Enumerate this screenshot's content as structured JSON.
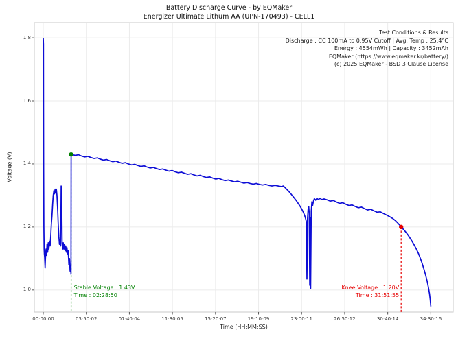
{
  "chart_data": {
    "type": "line",
    "title": "Battery Discharge Curve - by EQMaker",
    "subtitle": "Energizer Ultimate Lithum AA (UPN-170493) - CELL1",
    "xlabel": "Time (HH:MM:SS)",
    "ylabel": "Voltage (V)",
    "grid": true,
    "legend_position": "none",
    "info_box": {
      "lines": [
        "Test Conditions & Results",
        "Discharge : CC 100mA to 0.95V Cutoff | Avg. Temp : 25.4°C",
        "Energy : 4554mWh | Capacity : 3452mAh",
        "EQMaker (https://www.eqmaker.kr/battery/)",
        "(c) 2025 EQMaker - BSD 3 Clause License"
      ]
    },
    "x_ticks": [
      {
        "label": "00:00:00",
        "t": 0
      },
      {
        "label": "03:50:02",
        "t": 13802
      },
      {
        "label": "07:40:04",
        "t": 27604
      },
      {
        "label": "11:30:05",
        "t": 41405
      },
      {
        "label": "15:20:07",
        "t": 55207
      },
      {
        "label": "19:10:09",
        "t": 69009
      },
      {
        "label": "23:00:11",
        "t": 82811
      },
      {
        "label": "26:50:12",
        "t": 96612
      },
      {
        "label": "30:40:14",
        "t": 110414
      },
      {
        "label": "34:30:16",
        "t": 124216
      }
    ],
    "y_ticks": [
      {
        "label": "1.8",
        "v": 1.8
      },
      {
        "label": "1.6",
        "v": 1.6
      },
      {
        "label": "1.4",
        "v": 1.4
      },
      {
        "label": "1.2",
        "v": 1.2
      },
      {
        "label": "1.0",
        "v": 1.0
      }
    ],
    "xlim_seconds": [
      -2862,
      131400
    ],
    "ylim_volts": [
      0.93,
      1.848
    ],
    "colors": {
      "line": "#0d0dd6",
      "stable": "#008000",
      "knee": "#e60000",
      "grid": "#ebebeb",
      "spine": "#c8c8c8",
      "tick": "#555555"
    },
    "markers": [
      {
        "id": "stable-voltage",
        "t": 8930,
        "v": 1.43,
        "color": "#008000",
        "line1": "Stable Voltage : 1.43V",
        "line2": "Time : 02:28:50",
        "text_align": "left"
      },
      {
        "id": "knee-voltage",
        "t": 114715,
        "v": 1.2,
        "color": "#e60000",
        "line1": "Knee Voltage : 1.20V",
        "line2": "Time : 31:51:55",
        "text_align": "right"
      }
    ],
    "series": [
      {
        "name": "CELL1",
        "color": "#0d0dd6",
        "points": [
          [
            0,
            1.8
          ],
          [
            60,
            1.78
          ],
          [
            90,
            1.6
          ],
          [
            130,
            1.38
          ],
          [
            200,
            1.2
          ],
          [
            280,
            1.13
          ],
          [
            360,
            1.115
          ],
          [
            450,
            1.105
          ],
          [
            600,
            1.07
          ],
          [
            750,
            1.11
          ],
          [
            900,
            1.13
          ],
          [
            1050,
            1.11
          ],
          [
            1200,
            1.145
          ],
          [
            1400,
            1.12
          ],
          [
            1600,
            1.15
          ],
          [
            1800,
            1.13
          ],
          [
            2000,
            1.155
          ],
          [
            2200,
            1.14
          ],
          [
            2400,
            1.17
          ],
          [
            2600,
            1.21
          ],
          [
            2800,
            1.235
          ],
          [
            3000,
            1.27
          ],
          [
            3200,
            1.3
          ],
          [
            3400,
            1.315
          ],
          [
            3600,
            1.305
          ],
          [
            3800,
            1.32
          ],
          [
            4000,
            1.31
          ],
          [
            4200,
            1.32
          ],
          [
            4400,
            1.3
          ],
          [
            4600,
            1.26
          ],
          [
            4800,
            1.21
          ],
          [
            5000,
            1.17
          ],
          [
            5200,
            1.145
          ],
          [
            5400,
            1.16
          ],
          [
            5600,
            1.14
          ],
          [
            5750,
            1.33
          ],
          [
            5900,
            1.31
          ],
          [
            6050,
            1.15
          ],
          [
            6200,
            1.13
          ],
          [
            6400,
            1.15
          ],
          [
            6600,
            1.13
          ],
          [
            6800,
            1.145
          ],
          [
            7000,
            1.125
          ],
          [
            7200,
            1.14
          ],
          [
            7400,
            1.12
          ],
          [
            7600,
            1.135
          ],
          [
            7800,
            1.115
          ],
          [
            8000,
            1.125
          ],
          [
            8200,
            1.08
          ],
          [
            8400,
            1.1
          ],
          [
            8600,
            1.06
          ],
          [
            8800,
            1.07
          ],
          [
            8900,
            1.05
          ],
          [
            8930,
            1.43
          ],
          [
            9300,
            1.429
          ],
          [
            10300,
            1.427
          ],
          [
            11300,
            1.429
          ],
          [
            12300,
            1.425
          ],
          [
            13300,
            1.422
          ],
          [
            14300,
            1.424
          ],
          [
            15300,
            1.42
          ],
          [
            16300,
            1.417
          ],
          [
            17300,
            1.419
          ],
          [
            18300,
            1.415
          ],
          [
            19300,
            1.412
          ],
          [
            20300,
            1.414
          ],
          [
            21300,
            1.41
          ],
          [
            22300,
            1.407
          ],
          [
            23300,
            1.409
          ],
          [
            24300,
            1.405
          ],
          [
            25300,
            1.402
          ],
          [
            26300,
            1.404
          ],
          [
            27300,
            1.4
          ],
          [
            28300,
            1.397
          ],
          [
            29300,
            1.399
          ],
          [
            30300,
            1.395
          ],
          [
            31300,
            1.392
          ],
          [
            32300,
            1.394
          ],
          [
            33300,
            1.39
          ],
          [
            34300,
            1.387
          ],
          [
            35300,
            1.389
          ],
          [
            36300,
            1.385
          ],
          [
            37300,
            1.382
          ],
          [
            38300,
            1.384
          ],
          [
            39300,
            1.38
          ],
          [
            40300,
            1.377
          ],
          [
            41300,
            1.379
          ],
          [
            42300,
            1.375
          ],
          [
            43300,
            1.372
          ],
          [
            44300,
            1.374
          ],
          [
            45300,
            1.37
          ],
          [
            46300,
            1.367
          ],
          [
            47300,
            1.369
          ],
          [
            48300,
            1.365
          ],
          [
            49300,
            1.362
          ],
          [
            50300,
            1.364
          ],
          [
            51300,
            1.36
          ],
          [
            52300,
            1.357
          ],
          [
            53300,
            1.359
          ],
          [
            54300,
            1.355
          ],
          [
            55300,
            1.352
          ],
          [
            56300,
            1.354
          ],
          [
            57300,
            1.35
          ],
          [
            58300,
            1.347
          ],
          [
            59300,
            1.349
          ],
          [
            60300,
            1.346
          ],
          [
            61300,
            1.343
          ],
          [
            62300,
            1.345
          ],
          [
            63300,
            1.342
          ],
          [
            64300,
            1.339
          ],
          [
            65300,
            1.341
          ],
          [
            66300,
            1.338
          ],
          [
            67300,
            1.336
          ],
          [
            68300,
            1.338
          ],
          [
            69300,
            1.335
          ],
          [
            70300,
            1.333
          ],
          [
            71300,
            1.335
          ],
          [
            72300,
            1.332
          ],
          [
            73300,
            1.33
          ],
          [
            74300,
            1.332
          ],
          [
            75300,
            1.33
          ],
          [
            76300,
            1.328
          ],
          [
            77000,
            1.33
          ],
          [
            77800,
            1.322
          ],
          [
            78600,
            1.314
          ],
          [
            79400,
            1.305
          ],
          [
            80200,
            1.295
          ],
          [
            81000,
            1.285
          ],
          [
            81700,
            1.275
          ],
          [
            82300,
            1.266
          ],
          [
            82900,
            1.256
          ],
          [
            83400,
            1.246
          ],
          [
            83800,
            1.236
          ],
          [
            84100,
            1.226
          ],
          [
            84350,
            1.216
          ],
          [
            84520,
            1.035
          ],
          [
            84700,
            1.225
          ],
          [
            84900,
            1.255
          ],
          [
            85100,
            1.265
          ],
          [
            85250,
            1.245
          ],
          [
            85420,
            1.015
          ],
          [
            85560,
            1.23
          ],
          [
            85700,
            1.005
          ],
          [
            85900,
            1.25
          ],
          [
            86100,
            1.28
          ],
          [
            86350,
            1.268
          ],
          [
            86600,
            1.282
          ],
          [
            86900,
            1.29
          ],
          [
            87300,
            1.285
          ],
          [
            87700,
            1.291
          ],
          [
            88200,
            1.287
          ],
          [
            88700,
            1.291
          ],
          [
            89300,
            1.287
          ],
          [
            90000,
            1.289
          ],
          [
            91000,
            1.286
          ],
          [
            92000,
            1.282
          ],
          [
            93000,
            1.284
          ],
          [
            94000,
            1.279
          ],
          [
            95000,
            1.275
          ],
          [
            96000,
            1.277
          ],
          [
            97000,
            1.272
          ],
          [
            98000,
            1.268
          ],
          [
            99000,
            1.27
          ],
          [
            100000,
            1.265
          ],
          [
            101000,
            1.261
          ],
          [
            102000,
            1.263
          ],
          [
            103000,
            1.258
          ],
          [
            104000,
            1.254
          ],
          [
            105000,
            1.256
          ],
          [
            106000,
            1.251
          ],
          [
            107000,
            1.247
          ],
          [
            108000,
            1.248
          ],
          [
            109000,
            1.243
          ],
          [
            110000,
            1.238
          ],
          [
            111000,
            1.233
          ],
          [
            112000,
            1.227
          ],
          [
            113000,
            1.219
          ],
          [
            113800,
            1.211
          ],
          [
            114400,
            1.204
          ],
          [
            114715,
            1.2
          ],
          [
            115400,
            1.193
          ],
          [
            116100,
            1.185
          ],
          [
            116800,
            1.176
          ],
          [
            117500,
            1.166
          ],
          [
            118200,
            1.155
          ],
          [
            118900,
            1.143
          ],
          [
            119600,
            1.13
          ],
          [
            120300,
            1.115
          ],
          [
            120900,
            1.1
          ],
          [
            121500,
            1.083
          ],
          [
            122100,
            1.064
          ],
          [
            122600,
            1.046
          ],
          [
            123100,
            1.026
          ],
          [
            123500,
            1.006
          ],
          [
            123800,
            0.988
          ],
          [
            124050,
            0.968
          ],
          [
            124216,
            0.948
          ]
        ]
      }
    ]
  }
}
